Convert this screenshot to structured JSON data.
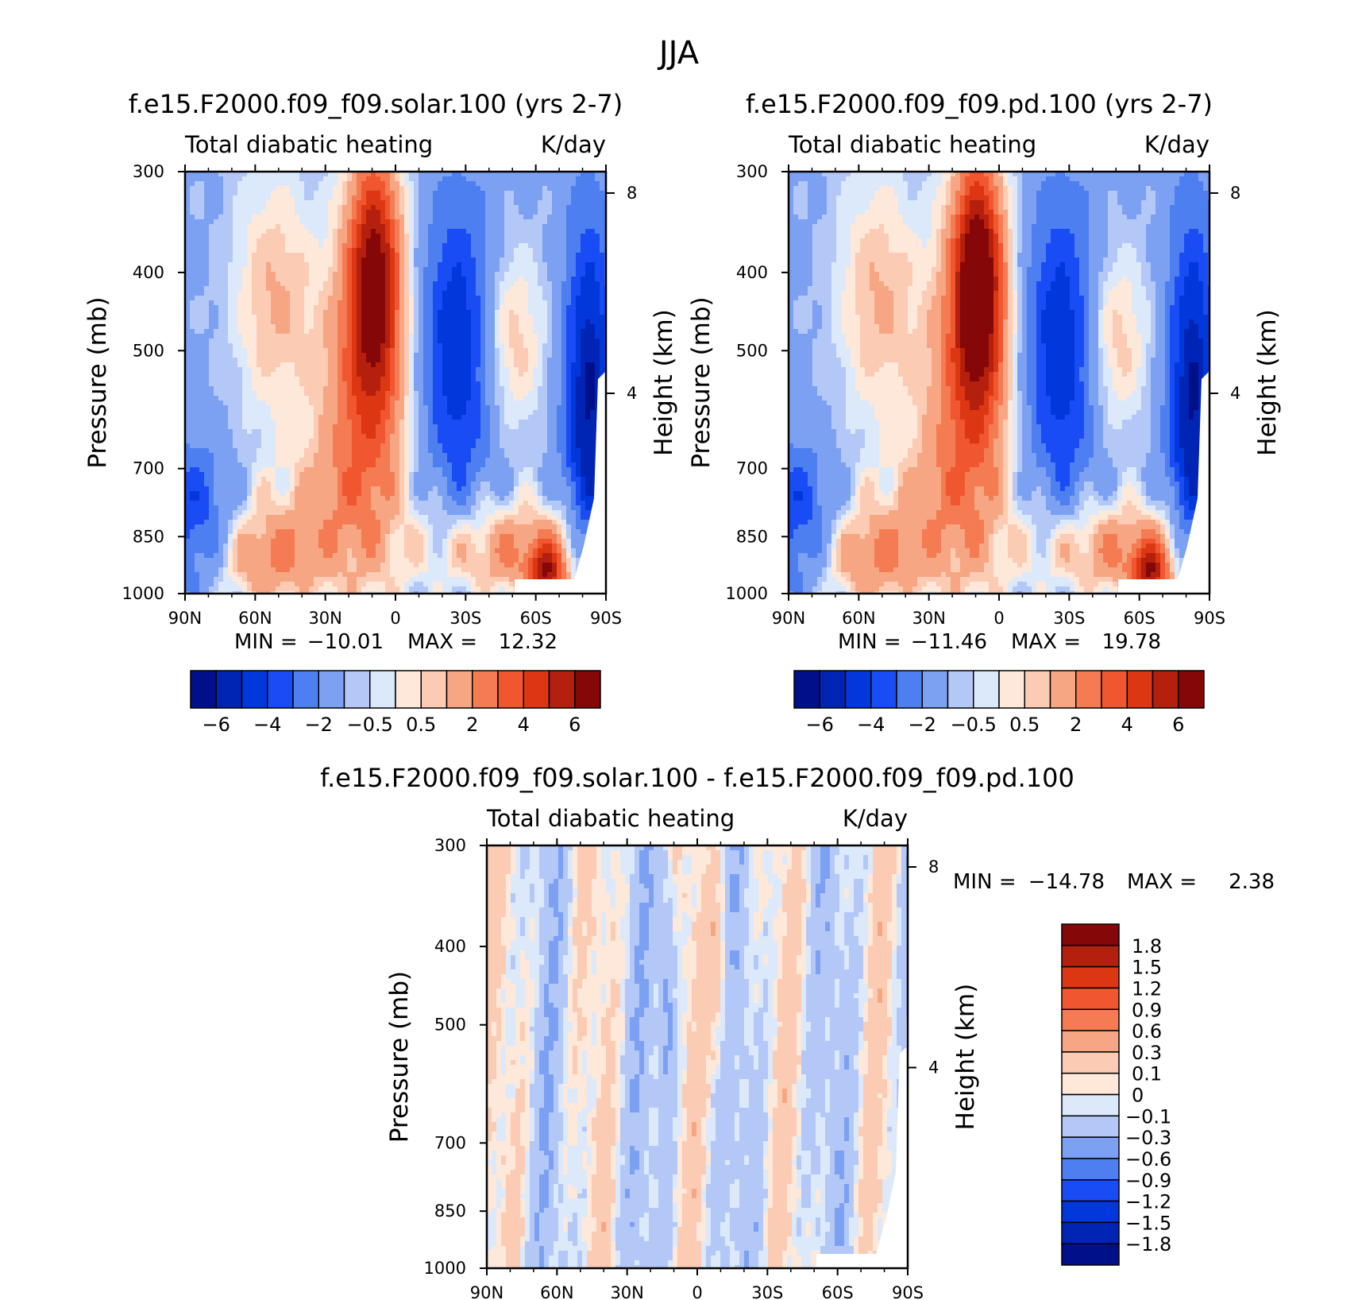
{
  "figure": {
    "title": "JJA"
  },
  "chart_data": [
    {
      "type": "heatmap",
      "title": "f.e15.F2000.f09_f09.solar.100 (yrs 2-7)",
      "left_label": "Total diabatic heating",
      "right_label": "K/day",
      "xlabel": "",
      "ylabel": "Pressure (mb)",
      "y2label": "Height (km)",
      "x_ticks": [
        "90N",
        "60N",
        "30N",
        "0",
        "30S",
        "60S",
        "90S"
      ],
      "y_ticks": [
        "300",
        "400",
        "500",
        "700",
        "850",
        "1000"
      ],
      "y2_ticks": [
        "8",
        "4"
      ],
      "xlim": [
        90,
        -90
      ],
      "ylim": [
        1000,
        300
      ],
      "min_label": "MIN =",
      "min_value": "-10.01",
      "max_label": "MAX =",
      "max_value": "12.32",
      "colorbar": {
        "colors": [
          "#000f8a",
          "#0025b5",
          "#0038dc",
          "#1a4cf5",
          "#4e7ff1",
          "#7ca0f2",
          "#b3c8f7",
          "#dce9fa",
          "#fde8da",
          "#fbcbb3",
          "#f7a683",
          "#f47b52",
          "#f0562f",
          "#dc3712",
          "#b4200d",
          "#850707"
        ],
        "tick_labels": [
          "-6",
          "-4",
          "-2",
          "-0.5",
          "0.5",
          "2",
          "4",
          "6"
        ]
      }
    },
    {
      "type": "heatmap",
      "title": "f.e15.F2000.f09_f09.pd.100 (yrs 2-7)",
      "left_label": "Total diabatic heating",
      "right_label": "K/day",
      "xlabel": "",
      "ylabel": "Pressure (mb)",
      "y2label": "Height (km)",
      "x_ticks": [
        "90N",
        "60N",
        "30N",
        "0",
        "30S",
        "60S",
        "90S"
      ],
      "y_ticks": [
        "300",
        "400",
        "500",
        "700",
        "850",
        "1000"
      ],
      "y2_ticks": [
        "8",
        "4"
      ],
      "xlim": [
        90,
        -90
      ],
      "ylim": [
        1000,
        300
      ],
      "min_label": "MIN =",
      "min_value": "-11.46",
      "max_label": "MAX =",
      "max_value": "19.78",
      "colorbar": {
        "colors": [
          "#000f8a",
          "#0025b5",
          "#0038dc",
          "#1a4cf5",
          "#4e7ff1",
          "#7ca0f2",
          "#b3c8f7",
          "#dce9fa",
          "#fde8da",
          "#fbcbb3",
          "#f7a683",
          "#f47b52",
          "#f0562f",
          "#dc3712",
          "#b4200d",
          "#850707"
        ],
        "tick_labels": [
          "-6",
          "-4",
          "-2",
          "-0.5",
          "0.5",
          "2",
          "4",
          "6"
        ]
      }
    },
    {
      "type": "heatmap",
      "title": "f.e15.F2000.f09_f09.solar.100 - f.e15.F2000.f09_f09.pd.100",
      "left_label": "Total diabatic heating",
      "right_label": "K/day",
      "xlabel": "",
      "ylabel": "Pressure (mb)",
      "y2label": "Height (km)",
      "x_ticks": [
        "90N",
        "60N",
        "30N",
        "0",
        "30S",
        "60S",
        "90S"
      ],
      "y_ticks": [
        "300",
        "400",
        "500",
        "700",
        "850",
        "1000"
      ],
      "y2_ticks": [
        "8",
        "4"
      ],
      "xlim": [
        90,
        -90
      ],
      "ylim": [
        1000,
        300
      ],
      "min_label": "MIN =",
      "min_value": "-14.78",
      "max_label": "MAX =",
      "max_value": "2.38",
      "colorbar": {
        "colors": [
          "#850707",
          "#b4200d",
          "#dc3712",
          "#f0562f",
          "#f47b52",
          "#f7a683",
          "#fbcbb3",
          "#fde8da",
          "#dce9fa",
          "#b3c8f7",
          "#7ca0f2",
          "#4e7ff1",
          "#1a4cf5",
          "#0038dc",
          "#0025b5",
          "#000f8a"
        ],
        "tick_labels": [
          "1.8",
          "1.5",
          "1.2",
          "0.9",
          "0.6",
          "0.3",
          "0.1",
          "0",
          "-0.1",
          "-0.3",
          "-0.6",
          "-0.9",
          "-1.2",
          "-1.5",
          "-1.8"
        ]
      }
    }
  ]
}
